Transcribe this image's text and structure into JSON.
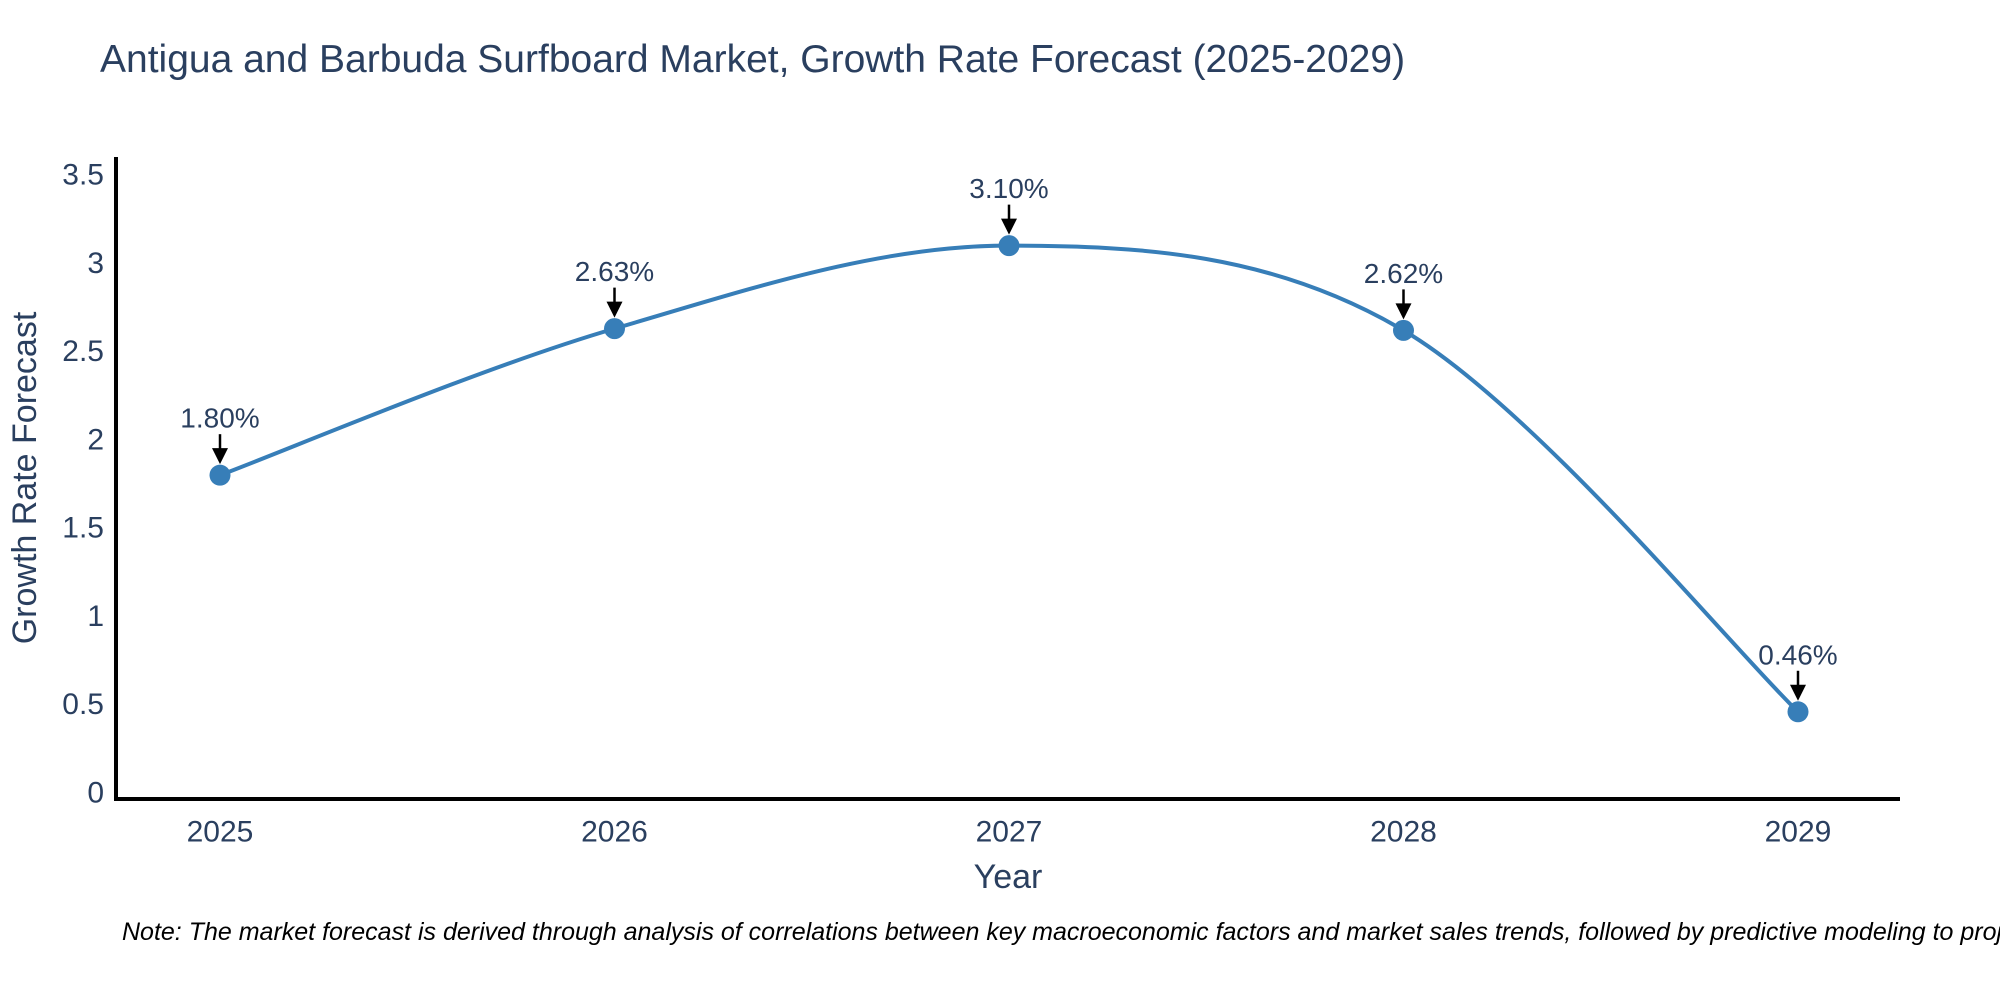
{
  "note": "Note: The market forecast is derived through analysis of correlations between key macroeconomic factors and market sales trends, followed by predictive modeling to project future sales",
  "chart_data": {
    "type": "line",
    "title": "Antigua and Barbuda Surfboard Market, Growth Rate Forecast (2025-2029)",
    "xlabel": "Year",
    "ylabel": "Growth Rate Forecast",
    "categories": [
      "2025",
      "2026",
      "2027",
      "2028",
      "2029"
    ],
    "series": [
      {
        "name": "Growth Rate Forecast",
        "values": [
          1.8,
          2.63,
          3.1,
          2.62,
          0.46
        ]
      }
    ],
    "point_labels": [
      "1.80%",
      "2.63%",
      "3.10%",
      "2.62%",
      "0.46%"
    ],
    "ylim": [
      0,
      3.5
    ],
    "yticks": [
      0,
      0.5,
      1,
      1.5,
      2,
      2.5,
      3,
      3.5
    ],
    "ytick_labels": [
      "0",
      "0.5",
      "1",
      "1.5",
      "2",
      "2.5",
      "3",
      "3.5"
    ],
    "line_shape": "spline",
    "grid": false,
    "legend_position": "none",
    "markers": true,
    "annotation_arrows": true,
    "colors": {
      "line": "#377eb8",
      "marker": "#377eb8",
      "axis": "#000000",
      "text": "#2a3f5f",
      "arrow": "#000000",
      "note_text": "#000000",
      "background": "#ffffff"
    }
  }
}
